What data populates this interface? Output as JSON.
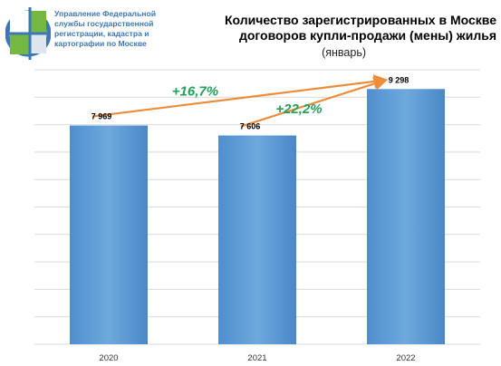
{
  "header": {
    "agency": "Управление Федеральной службы государственной регистрации, кадастра и картографии по Москве",
    "title_line1": "Количество зарегистрированных в Москве",
    "title_line2": "договоров купли-продажи (мены) жилья",
    "subtitle": "(январь)"
  },
  "colors": {
    "bar": "#5b9bd5",
    "arrow": "#ed8d3c",
    "growth_text": "#22a05a",
    "grid": "#d9d9d9",
    "logo_blue": "#3d78b4",
    "logo_green": "#74b843"
  },
  "chart_data": {
    "type": "bar",
    "categories": [
      "2020",
      "2021",
      "2022"
    ],
    "values": [
      7969,
      7606,
      9298
    ],
    "value_labels": [
      "7 969",
      "7 606",
      "9 298"
    ],
    "ylim": [
      0,
      10000
    ],
    "grid": true,
    "annotations": [
      {
        "from": "2020",
        "to": "2022",
        "text": "+16,7%"
      },
      {
        "from": "2021",
        "to": "2022",
        "text": "+22,2%"
      }
    ]
  }
}
